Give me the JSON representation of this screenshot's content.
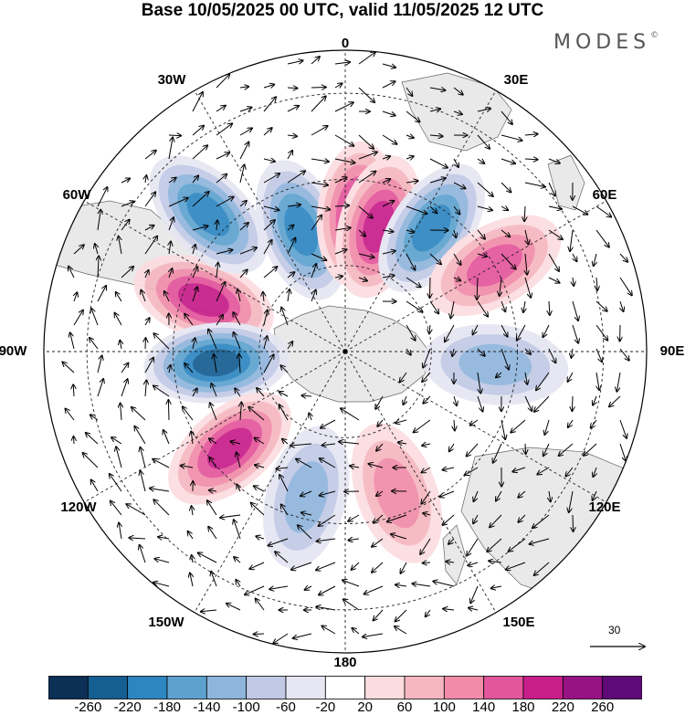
{
  "header": {
    "title": "Base 10/05/2025 00 UTC, valid 11/05/2025 12 UTC",
    "brand": "MODES",
    "brand_mark": "©"
  },
  "map": {
    "projection": "south-polar-stereographic",
    "longitude_labels": [
      "0",
      "30E",
      "60E",
      "90E",
      "120E",
      "150E",
      "180",
      "150W",
      "120W",
      "90W",
      "60W",
      "30W"
    ],
    "field": "geopotential height anomaly with wind vectors",
    "anomaly_centers": [
      {
        "sign": "positive",
        "lon_lat": [
          -70,
          -55
        ],
        "value": 180
      },
      {
        "sign": "negative",
        "lon_lat": [
          -45,
          -45
        ],
        "value": -180
      },
      {
        "sign": "negative",
        "lon_lat": [
          -20,
          -60
        ],
        "value": -180
      },
      {
        "sign": "positive",
        "lon_lat": [
          5,
          -58
        ],
        "value": 180
      },
      {
        "sign": "positive",
        "lon_lat": [
          15,
          -60
        ],
        "value": 180
      },
      {
        "sign": "negative",
        "lon_lat": [
          35,
          -55
        ],
        "value": -180
      },
      {
        "sign": "positive",
        "lon_lat": [
          60,
          -50
        ],
        "value": 140
      },
      {
        "sign": "negative",
        "lon_lat": [
          -95,
          -60
        ],
        "value": -220
      },
      {
        "sign": "positive",
        "lon_lat": [
          -130,
          -55
        ],
        "value": 180
      },
      {
        "sign": "negative",
        "lon_lat": [
          -165,
          -55
        ],
        "value": -100
      },
      {
        "sign": "positive",
        "lon_lat": [
          160,
          -55
        ],
        "value": 100
      },
      {
        "sign": "negative",
        "lon_lat": [
          95,
          -55
        ],
        "value": -100
      }
    ]
  },
  "vector_reference": {
    "label": "30"
  },
  "colorbar": {
    "colors": [
      "#0b2f55",
      "#155e91",
      "#2e86c1",
      "#5da2cf",
      "#8fb5dc",
      "#c1c9e6",
      "#e6e6f2",
      "#ffffff",
      "#fbdde0",
      "#f6b7c0",
      "#f08caa",
      "#e3559c",
      "#c81e8a",
      "#971283",
      "#5e0a78"
    ],
    "tick_labels": [
      "-260",
      "-220",
      "-180",
      "-140",
      "-100",
      "-60",
      "-20",
      "20",
      "60",
      "100",
      "140",
      "180",
      "220",
      "260"
    ]
  }
}
